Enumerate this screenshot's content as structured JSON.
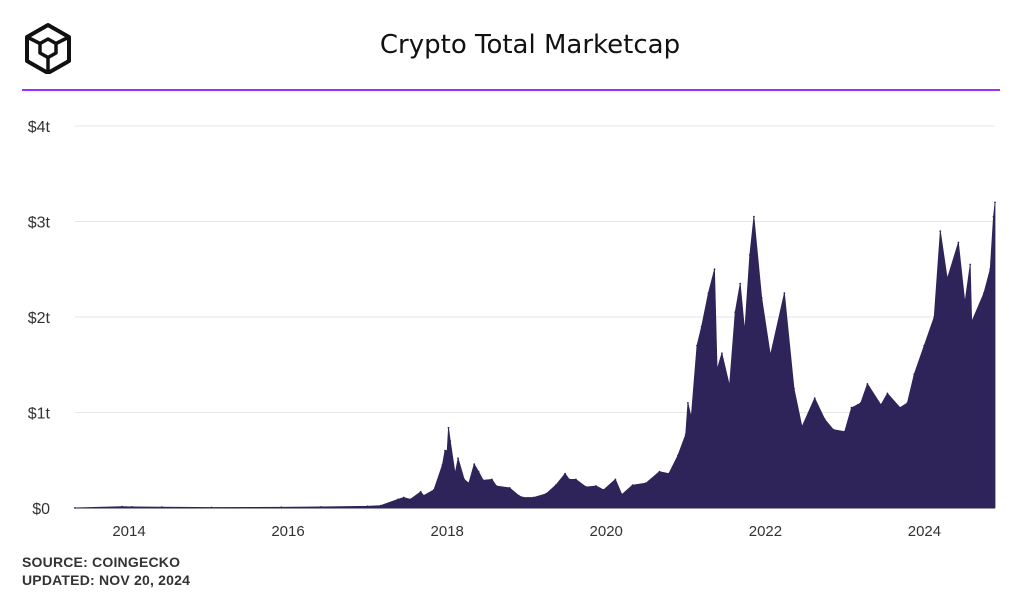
{
  "header": {
    "title": "Crypto Total Marketcap",
    "logo_icon": "cube-logo-icon",
    "accent_color": "#9b30ff"
  },
  "footer": {
    "source": "SOURCE: COINGECKO",
    "updated": "UPDATED: NOV 20, 2024"
  },
  "chart_data": {
    "type": "area",
    "title": "Crypto Total Marketcap",
    "xlabel": "",
    "ylabel": "",
    "color": "#2e2459",
    "grid": true,
    "ylim": [
      0,
      4
    ],
    "y_unit": "trillion USD",
    "yticks": [
      0,
      1,
      2,
      3,
      4
    ],
    "ytick_labels": [
      "$0",
      "$1t",
      "$2t",
      "$3t",
      "$4t"
    ],
    "xlim": [
      "2013-04-28",
      "2024-11-20"
    ],
    "xticks": [
      "2014-01-01",
      "2016-01-01",
      "2018-01-01",
      "2020-01-01",
      "2022-01-01",
      "2024-01-01"
    ],
    "xtick_labels": [
      "2014",
      "2016",
      "2018",
      "2020",
      "2022",
      "2024"
    ],
    "series": [
      {
        "values": [
          [
            "2013-04-28",
            0.0015
          ],
          [
            "2013-11-30",
            0.014
          ],
          [
            "2014-01-15",
            0.012
          ],
          [
            "2014-06-01",
            0.009
          ],
          [
            "2015-01-15",
            0.005
          ],
          [
            "2015-12-01",
            0.007
          ],
          [
            "2016-06-01",
            0.012
          ],
          [
            "2016-12-31",
            0.018
          ],
          [
            "2017-03-01",
            0.025
          ],
          [
            "2017-05-20",
            0.09
          ],
          [
            "2017-06-15",
            0.11
          ],
          [
            "2017-07-15",
            0.09
          ],
          [
            "2017-09-01",
            0.17
          ],
          [
            "2017-09-15",
            0.13
          ],
          [
            "2017-11-01",
            0.19
          ],
          [
            "2017-12-10",
            0.45
          ],
          [
            "2017-12-22",
            0.6
          ],
          [
            "2018-01-01",
            0.6
          ],
          [
            "2018-01-07",
            0.84
          ],
          [
            "2018-01-15",
            0.7
          ],
          [
            "2018-02-06",
            0.36
          ],
          [
            "2018-02-20",
            0.52
          ],
          [
            "2018-03-20",
            0.3
          ],
          [
            "2018-04-10",
            0.26
          ],
          [
            "2018-05-05",
            0.46
          ],
          [
            "2018-05-25",
            0.38
          ],
          [
            "2018-06-15",
            0.29
          ],
          [
            "2018-07-25",
            0.3
          ],
          [
            "2018-08-15",
            0.23
          ],
          [
            "2018-10-15",
            0.21
          ],
          [
            "2018-11-25",
            0.13
          ],
          [
            "2018-12-15",
            0.11
          ],
          [
            "2019-02-01",
            0.11
          ],
          [
            "2019-04-01",
            0.15
          ],
          [
            "2019-05-15",
            0.24
          ],
          [
            "2019-06-26",
            0.36
          ],
          [
            "2019-07-15",
            0.3
          ],
          [
            "2019-08-15",
            0.3
          ],
          [
            "2019-09-30",
            0.22
          ],
          [
            "2019-11-15",
            0.23
          ],
          [
            "2019-12-20",
            0.19
          ],
          [
            "2020-02-12",
            0.3
          ],
          [
            "2020-03-13",
            0.14
          ],
          [
            "2020-05-01",
            0.24
          ],
          [
            "2020-07-01",
            0.26
          ],
          [
            "2020-09-01",
            0.38
          ],
          [
            "2020-10-15",
            0.36
          ],
          [
            "2020-11-25",
            0.55
          ],
          [
            "2020-12-31",
            0.77
          ],
          [
            "2021-01-10",
            1.1
          ],
          [
            "2021-01-25",
            0.95
          ],
          [
            "2021-02-21",
            1.7
          ],
          [
            "2021-03-14",
            1.9
          ],
          [
            "2021-04-14",
            2.25
          ],
          [
            "2021-05-12",
            2.5
          ],
          [
            "2021-05-24",
            1.45
          ],
          [
            "2021-06-15",
            1.62
          ],
          [
            "2021-07-20",
            1.28
          ],
          [
            "2021-08-15",
            2.05
          ],
          [
            "2021-09-07",
            2.35
          ],
          [
            "2021-09-28",
            1.85
          ],
          [
            "2021-10-21",
            2.65
          ],
          [
            "2021-11-09",
            3.05
          ],
          [
            "2021-12-15",
            2.2
          ],
          [
            "2022-01-24",
            1.6
          ],
          [
            "2022-03-29",
            2.25
          ],
          [
            "2022-05-12",
            1.25
          ],
          [
            "2022-06-18",
            0.85
          ],
          [
            "2022-08-15",
            1.15
          ],
          [
            "2022-09-30",
            0.93
          ],
          [
            "2022-11-09",
            0.82
          ],
          [
            "2022-12-31",
            0.8
          ],
          [
            "2023-01-31",
            1.05
          ],
          [
            "2023-02-28",
            1.08
          ],
          [
            "2023-03-15",
            1.1
          ],
          [
            "2023-04-14",
            1.3
          ],
          [
            "2023-06-15",
            1.08
          ],
          [
            "2023-07-15",
            1.2
          ],
          [
            "2023-09-11",
            1.05
          ],
          [
            "2023-10-15",
            1.1
          ],
          [
            "2023-11-15",
            1.4
          ],
          [
            "2023-12-31",
            1.7
          ],
          [
            "2024-02-15",
            2.0
          ],
          [
            "2024-03-14",
            2.9
          ],
          [
            "2024-04-15",
            2.4
          ],
          [
            "2024-06-05",
            2.78
          ],
          [
            "2024-07-05",
            2.15
          ],
          [
            "2024-07-29",
            2.55
          ],
          [
            "2024-08-05",
            1.95
          ],
          [
            "2024-09-30",
            2.25
          ],
          [
            "2024-10-29",
            2.5
          ],
          [
            "2024-11-13",
            3.05
          ],
          [
            "2024-11-20",
            3.2
          ]
        ]
      }
    ]
  }
}
